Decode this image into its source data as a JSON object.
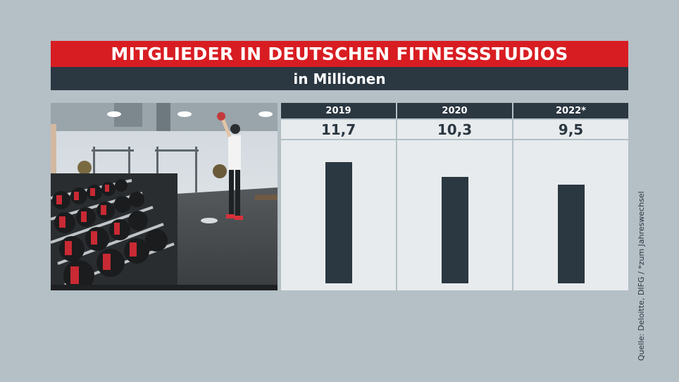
{
  "header": {
    "title": "MITGLIEDER IN DEUTSCHEN FITNESSSTUDIOS",
    "subtitle": "in Millionen"
  },
  "source_note": "Quelle: Deloitte, DIFG / *zum Jahreswechsel",
  "photo": {
    "icon": "gym-dumbbell-rack-photo"
  },
  "colors": {
    "title_red": "#d81d22",
    "dark": "#2b3741",
    "background": "#b4bfc6",
    "panel": "#e7ebed"
  },
  "chart_data": {
    "type": "bar",
    "title": "MITGLIEDER IN DEUTSCHEN FITNESSSTUDIOS",
    "subtitle": "in Millionen",
    "categories": [
      "2019",
      "2020",
      "2022*"
    ],
    "values": [
      11.7,
      10.3,
      9.5
    ],
    "value_labels": [
      "11,7",
      "10,3",
      "9,5"
    ],
    "ylim": [
      0,
      13
    ],
    "grid": false
  }
}
